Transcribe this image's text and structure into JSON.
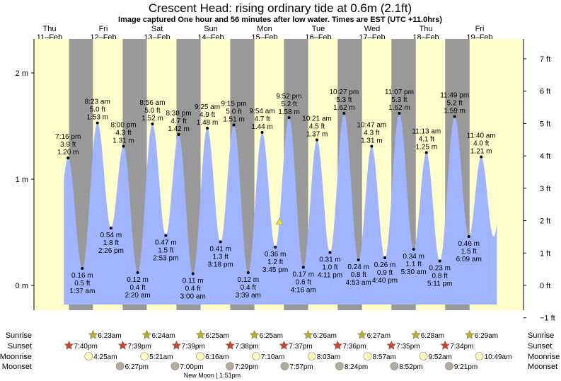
{
  "title": "Crescent Head: rising  ordinary tide at 0.6m (2.1ft)",
  "subtitle": "Image captured One hour and 56 minutes after low water. Times are EST (UTC +11.0hrs)",
  "colors": {
    "day": "#ffffcc",
    "night": "#999999",
    "water": "#a0b4ff",
    "header": "#cc0000",
    "sun": "#b5b030",
    "sunset": "#cc4433",
    "moonrise": "#ffffc0",
    "moonset": "#b0aca0",
    "marker": "#e0e040"
  },
  "days": [
    {
      "dow": "Thu",
      "date": "11–Feb"
    },
    {
      "dow": "Fri",
      "date": "12–Feb"
    },
    {
      "dow": "Sat",
      "date": "13–Feb"
    },
    {
      "dow": "Sun",
      "date": "14–Feb"
    },
    {
      "dow": "Mon",
      "date": "15–Feb"
    },
    {
      "dow": "Tue",
      "date": "16–Feb"
    },
    {
      "dow": "Wed",
      "date": "17–Feb"
    },
    {
      "dow": "Thu",
      "date": "18–Feb"
    },
    {
      "dow": "Fri",
      "date": "19–Feb"
    }
  ],
  "chart_data": {
    "type": "area",
    "x_unit": "hours since Thu 11-Feb 00:00",
    "y_left": {
      "label": "m",
      "ticks": [
        {
          "v": 0,
          "label": "0 m"
        },
        {
          "v": 1,
          "label": "1 m"
        },
        {
          "v": 2,
          "label": "2 m"
        }
      ]
    },
    "y_right": {
      "label": "ft",
      "ticks": [
        "−1 ft",
        "0 ft",
        "1 ft",
        "2 ft",
        "3 ft",
        "4 ft",
        "5 ft",
        "6 ft",
        "7 ft"
      ]
    },
    "ylim_m": [
      -0.23,
      2.32
    ],
    "current": {
      "t": 113.68,
      "m": 0.6
    },
    "extremes": [
      {
        "t": 19.27,
        "type": "high",
        "time": "7:16 pm",
        "ft": "3.9 ft",
        "m": 1.2,
        "mlabel": "1.20 m"
      },
      {
        "t": 25.62,
        "type": "low",
        "time": "1:37 am",
        "ft": "0.5 ft",
        "m": 0.16,
        "mlabel": "0.16 m"
      },
      {
        "t": 32.38,
        "type": "high",
        "time": "8:23 am",
        "ft": "5.0 ft",
        "m": 1.53,
        "mlabel": "1.53 m"
      },
      {
        "t": 38.43,
        "type": "low",
        "time": "2:26 pm",
        "ft": "1.8 ft",
        "m": 0.54,
        "mlabel": "0.54 m"
      },
      {
        "t": 44.0,
        "type": "high",
        "time": "8:00 pm",
        "ft": "4.3 ft",
        "m": 1.31,
        "mlabel": "1.31 m"
      },
      {
        "t": 50.33,
        "type": "low",
        "time": "2:20 am",
        "ft": "0.4 ft",
        "m": 0.12,
        "mlabel": "0.12 m"
      },
      {
        "t": 56.93,
        "type": "high",
        "time": "8:56 am",
        "ft": "5.0 ft",
        "m": 1.52,
        "mlabel": "1.52 m"
      },
      {
        "t": 62.88,
        "type": "low",
        "time": "2:53 pm",
        "ft": "1.5 ft",
        "m": 0.47,
        "mlabel": "0.47 m"
      },
      {
        "t": 68.63,
        "type": "high",
        "time": "8:38 pm",
        "ft": "4.7 ft",
        "m": 1.42,
        "mlabel": "1.42 m"
      },
      {
        "t": 75.0,
        "type": "low",
        "time": "3:00 am",
        "ft": "0.4 ft",
        "m": 0.11,
        "mlabel": "0.11 m"
      },
      {
        "t": 81.42,
        "type": "high",
        "time": "9:25 am",
        "ft": "4.9 ft",
        "m": 1.48,
        "mlabel": "1.48 m"
      },
      {
        "t": 87.3,
        "type": "low",
        "time": "3:18 pm",
        "ft": "1.3 ft",
        "m": 0.41,
        "mlabel": "0.41 m"
      },
      {
        "t": 93.25,
        "type": "high",
        "time": "9:15 pm",
        "ft": "5.0 ft",
        "m": 1.51,
        "mlabel": "1.51 m"
      },
      {
        "t": 99.65,
        "type": "low",
        "time": "3:39 am",
        "ft": "0.4 ft",
        "m": 0.12,
        "mlabel": "0.12 m"
      },
      {
        "t": 105.9,
        "type": "high",
        "time": "9:54 am",
        "ft": "4.7 ft",
        "m": 1.44,
        "mlabel": "1.44 m"
      },
      {
        "t": 111.75,
        "type": "low",
        "time": "3:45 pm",
        "ft": "1.2 ft",
        "m": 0.36,
        "mlabel": "0.36 m"
      },
      {
        "t": 117.87,
        "type": "high",
        "time": "9:52 pm",
        "ft": "5.2 ft",
        "m": 1.58,
        "mlabel": "1.58 m"
      },
      {
        "t": 124.27,
        "type": "low",
        "time": "4:16 am",
        "ft": "0.6 ft",
        "m": 0.17,
        "mlabel": "0.17 m"
      },
      {
        "t": 130.35,
        "type": "high",
        "time": "10:21 am",
        "ft": "4.5 ft",
        "m": 1.37,
        "mlabel": "1.37 m"
      },
      {
        "t": 136.18,
        "type": "low",
        "time": "4:11 pm",
        "ft": "1.0 ft",
        "m": 0.31,
        "mlabel": "0.31 m"
      },
      {
        "t": 142.45,
        "type": "high",
        "time": "10:27 pm",
        "ft": "5.3 ft",
        "m": 1.62,
        "mlabel": "1.62 m"
      },
      {
        "t": 148.88,
        "type": "low",
        "time": "4:53 am",
        "ft": "0.8 ft",
        "m": 0.24,
        "mlabel": "0.24 m"
      },
      {
        "t": 154.78,
        "type": "high",
        "time": "10:47 am",
        "ft": "4.3 ft",
        "m": 1.31,
        "mlabel": "1.31 m"
      },
      {
        "t": 160.67,
        "type": "low",
        "time": "4:40 pm",
        "ft": "0.9 ft",
        "m": 0.26,
        "mlabel": "0.26 m"
      },
      {
        "t": 167.12,
        "type": "high",
        "time": "11:07 pm",
        "ft": "5.3 ft",
        "m": 1.62,
        "mlabel": "1.62 m"
      },
      {
        "t": 173.5,
        "type": "low",
        "time": "5:30 am",
        "ft": "1.1 ft",
        "m": 0.34,
        "mlabel": "0.34 m"
      },
      {
        "t": 179.22,
        "type": "high",
        "time": "11:13 am",
        "ft": "4.1 ft",
        "m": 1.25,
        "mlabel": "1.25 m"
      },
      {
        "t": 185.18,
        "type": "low",
        "time": "5:11 pm",
        "ft": "0.8 ft",
        "m": 0.23,
        "mlabel": "0.23 m"
      },
      {
        "t": 191.82,
        "type": "high",
        "time": "11:49 pm",
        "ft": "5.2 ft",
        "m": 1.59,
        "mlabel": "1.59 m"
      },
      {
        "t": 198.15,
        "type": "low",
        "time": "6:09 am",
        "ft": "1.5 ft",
        "m": 0.46,
        "mlabel": "0.46 m"
      },
      {
        "t": 203.67,
        "type": "high",
        "time": "11:40 am",
        "ft": "4.0 ft",
        "m": 1.21,
        "mlabel": "1.21 m"
      }
    ]
  },
  "astro": {
    "labels": {
      "sunrise": "Sunrise",
      "sunset": "Sunset",
      "moonrise": "Moonrise",
      "moonset": "Moonset"
    },
    "sunrise": [
      {
        "t": 30.38,
        "label": "6:23am"
      },
      {
        "t": 54.4,
        "label": "6:24am"
      },
      {
        "t": 78.42,
        "label": "6:25am"
      },
      {
        "t": 102.42,
        "label": "6:25am"
      },
      {
        "t": 126.43,
        "label": "6:26am"
      },
      {
        "t": 150.45,
        "label": "6:27am"
      },
      {
        "t": 174.47,
        "label": "6:28am"
      },
      {
        "t": 198.48,
        "label": "6:29am"
      }
    ],
    "sunset": [
      {
        "t": 19.67,
        "label": "7:40pm"
      },
      {
        "t": 43.65,
        "label": "7:39pm"
      },
      {
        "t": 67.65,
        "label": "7:39pm"
      },
      {
        "t": 91.63,
        "label": "7:38pm"
      },
      {
        "t": 115.62,
        "label": "7:37pm"
      },
      {
        "t": 139.6,
        "label": "7:36pm"
      },
      {
        "t": 163.58,
        "label": "7:35pm"
      },
      {
        "t": 187.57,
        "label": "7:34pm"
      }
    ],
    "moonrise": [
      {
        "t": 28.42,
        "label": "4:25am"
      },
      {
        "t": 53.35,
        "label": "5:21am"
      },
      {
        "t": 78.27,
        "label": "6:16am"
      },
      {
        "t": 103.17,
        "label": "7:10am"
      },
      {
        "t": 128.05,
        "label": "8:03am"
      },
      {
        "t": 152.95,
        "label": "8:57am"
      },
      {
        "t": 177.87,
        "label": "9:52am"
      },
      {
        "t": 202.82,
        "label": "10:49am"
      }
    ],
    "moonset": [
      {
        "t": 42.45,
        "label": "6:27pm"
      },
      {
        "t": 67.0,
        "label": "7:00pm"
      },
      {
        "t": 91.48,
        "label": "7:29pm"
      },
      {
        "t": 115.95,
        "label": "7:57pm"
      },
      {
        "t": 140.4,
        "label": "8:24pm"
      },
      {
        "t": 164.87,
        "label": "8:52pm"
      },
      {
        "t": 189.35,
        "label": "9:21pm"
      }
    ],
    "moon_phase": "New Moon | 1:51pm"
  }
}
